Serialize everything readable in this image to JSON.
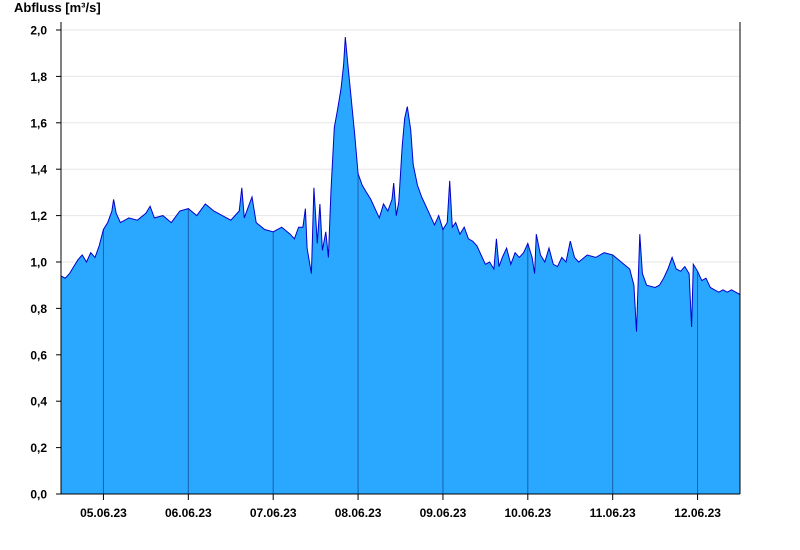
{
  "chart_data": {
    "type": "area",
    "title": "",
    "ylabel": "Abfluss [m³/s]",
    "xlabel": "",
    "ylim": [
      0,
      2.0
    ],
    "yticks": [
      0,
      0.2,
      0.4,
      0.6,
      0.8,
      1.0,
      1.2,
      1.4,
      1.6,
      1.8,
      2.0
    ],
    "ytick_labels": [
      "0,0",
      "0,2",
      "0,4",
      "0,6",
      "0,8",
      "1,0",
      "1,2",
      "1,4",
      "1,6",
      "1,8",
      "2,0"
    ],
    "x_start_day": 4.5,
    "x_end_day": 12.5,
    "day_boundaries": [
      5,
      6,
      7,
      8,
      9,
      10,
      11,
      12
    ],
    "xtick_labels": [
      "05.06.23",
      "06.06.23",
      "07.06.23",
      "08.06.23",
      "09.06.23",
      "10.06.23",
      "11.06.23",
      "12.06.23"
    ],
    "grid": true,
    "colors": {
      "fill": "#2aa8ff",
      "line": "#0000cc",
      "grid": "#e6e6e6",
      "axis": "#000000"
    },
    "series": [
      {
        "name": "",
        "points": [
          [
            4.5,
            0.94
          ],
          [
            4.55,
            0.93
          ],
          [
            4.6,
            0.95
          ],
          [
            4.65,
            0.98
          ],
          [
            4.7,
            1.01
          ],
          [
            4.75,
            1.03
          ],
          [
            4.8,
            1.0
          ],
          [
            4.85,
            1.04
          ],
          [
            4.9,
            1.02
          ],
          [
            4.95,
            1.07
          ],
          [
            5.0,
            1.14
          ],
          [
            5.05,
            1.17
          ],
          [
            5.1,
            1.22
          ],
          [
            5.12,
            1.27
          ],
          [
            5.15,
            1.21
          ],
          [
            5.2,
            1.17
          ],
          [
            5.3,
            1.19
          ],
          [
            5.4,
            1.18
          ],
          [
            5.5,
            1.21
          ],
          [
            5.55,
            1.24
          ],
          [
            5.6,
            1.19
          ],
          [
            5.7,
            1.2
          ],
          [
            5.8,
            1.17
          ],
          [
            5.9,
            1.22
          ],
          [
            6.0,
            1.23
          ],
          [
            6.1,
            1.2
          ],
          [
            6.2,
            1.25
          ],
          [
            6.3,
            1.22
          ],
          [
            6.4,
            1.2
          ],
          [
            6.5,
            1.18
          ],
          [
            6.6,
            1.22
          ],
          [
            6.63,
            1.32
          ],
          [
            6.66,
            1.19
          ],
          [
            6.7,
            1.23
          ],
          [
            6.75,
            1.28
          ],
          [
            6.8,
            1.17
          ],
          [
            6.9,
            1.14
          ],
          [
            7.0,
            1.13
          ],
          [
            7.1,
            1.15
          ],
          [
            7.2,
            1.12
          ],
          [
            7.25,
            1.1
          ],
          [
            7.3,
            1.15
          ],
          [
            7.35,
            1.15
          ],
          [
            7.38,
            1.23
          ],
          [
            7.4,
            1.06
          ],
          [
            7.45,
            0.95
          ],
          [
            7.48,
            1.32
          ],
          [
            7.52,
            1.08
          ],
          [
            7.55,
            1.25
          ],
          [
            7.58,
            1.05
          ],
          [
            7.62,
            1.13
          ],
          [
            7.65,
            1.02
          ],
          [
            7.68,
            1.3
          ],
          [
            7.72,
            1.58
          ],
          [
            7.76,
            1.66
          ],
          [
            7.8,
            1.75
          ],
          [
            7.83,
            1.85
          ],
          [
            7.85,
            1.97
          ],
          [
            7.88,
            1.85
          ],
          [
            7.92,
            1.7
          ],
          [
            7.96,
            1.55
          ],
          [
            8.0,
            1.38
          ],
          [
            8.05,
            1.33
          ],
          [
            8.1,
            1.3
          ],
          [
            8.15,
            1.27
          ],
          [
            8.2,
            1.23
          ],
          [
            8.25,
            1.19
          ],
          [
            8.3,
            1.25
          ],
          [
            8.35,
            1.22
          ],
          [
            8.4,
            1.27
          ],
          [
            8.42,
            1.34
          ],
          [
            8.45,
            1.2
          ],
          [
            8.48,
            1.26
          ],
          [
            8.52,
            1.5
          ],
          [
            8.55,
            1.62
          ],
          [
            8.58,
            1.67
          ],
          [
            8.62,
            1.57
          ],
          [
            8.65,
            1.42
          ],
          [
            8.7,
            1.33
          ],
          [
            8.75,
            1.28
          ],
          [
            8.8,
            1.24
          ],
          [
            8.85,
            1.2
          ],
          [
            8.9,
            1.16
          ],
          [
            8.95,
            1.2
          ],
          [
            9.0,
            1.14
          ],
          [
            9.05,
            1.17
          ],
          [
            9.08,
            1.35
          ],
          [
            9.11,
            1.15
          ],
          [
            9.15,
            1.17
          ],
          [
            9.2,
            1.12
          ],
          [
            9.25,
            1.15
          ],
          [
            9.3,
            1.1
          ],
          [
            9.35,
            1.09
          ],
          [
            9.4,
            1.07
          ],
          [
            9.45,
            1.03
          ],
          [
            9.5,
            0.99
          ],
          [
            9.55,
            1.0
          ],
          [
            9.6,
            0.97
          ],
          [
            9.63,
            1.1
          ],
          [
            9.66,
            0.98
          ],
          [
            9.7,
            1.02
          ],
          [
            9.75,
            1.06
          ],
          [
            9.8,
            0.99
          ],
          [
            9.85,
            1.04
          ],
          [
            9.9,
            1.02
          ],
          [
            9.95,
            1.04
          ],
          [
            10.0,
            1.08
          ],
          [
            10.05,
            1.02
          ],
          [
            10.08,
            0.95
          ],
          [
            10.1,
            1.12
          ],
          [
            10.15,
            1.03
          ],
          [
            10.2,
            1.0
          ],
          [
            10.25,
            1.06
          ],
          [
            10.3,
            0.99
          ],
          [
            10.35,
            0.98
          ],
          [
            10.4,
            1.02
          ],
          [
            10.45,
            1.0
          ],
          [
            10.5,
            1.09
          ],
          [
            10.55,
            1.02
          ],
          [
            10.6,
            1.0
          ],
          [
            10.7,
            1.03
          ],
          [
            10.8,
            1.02
          ],
          [
            10.9,
            1.04
          ],
          [
            11.0,
            1.03
          ],
          [
            11.1,
            1.0
          ],
          [
            11.2,
            0.97
          ],
          [
            11.25,
            0.9
          ],
          [
            11.28,
            0.7
          ],
          [
            11.3,
            0.92
          ],
          [
            11.32,
            1.12
          ],
          [
            11.35,
            0.95
          ],
          [
            11.4,
            0.9
          ],
          [
            11.5,
            0.89
          ],
          [
            11.55,
            0.9
          ],
          [
            11.6,
            0.93
          ],
          [
            11.65,
            0.97
          ],
          [
            11.7,
            1.02
          ],
          [
            11.75,
            0.97
          ],
          [
            11.8,
            0.96
          ],
          [
            11.85,
            0.98
          ],
          [
            11.9,
            0.95
          ],
          [
            11.93,
            0.72
          ],
          [
            11.95,
            0.99
          ],
          [
            12.0,
            0.96
          ],
          [
            12.05,
            0.92
          ],
          [
            12.1,
            0.93
          ],
          [
            12.15,
            0.89
          ],
          [
            12.2,
            0.88
          ],
          [
            12.25,
            0.87
          ],
          [
            12.3,
            0.88
          ],
          [
            12.35,
            0.87
          ],
          [
            12.4,
            0.88
          ],
          [
            12.45,
            0.87
          ],
          [
            12.5,
            0.86
          ]
        ]
      }
    ]
  }
}
